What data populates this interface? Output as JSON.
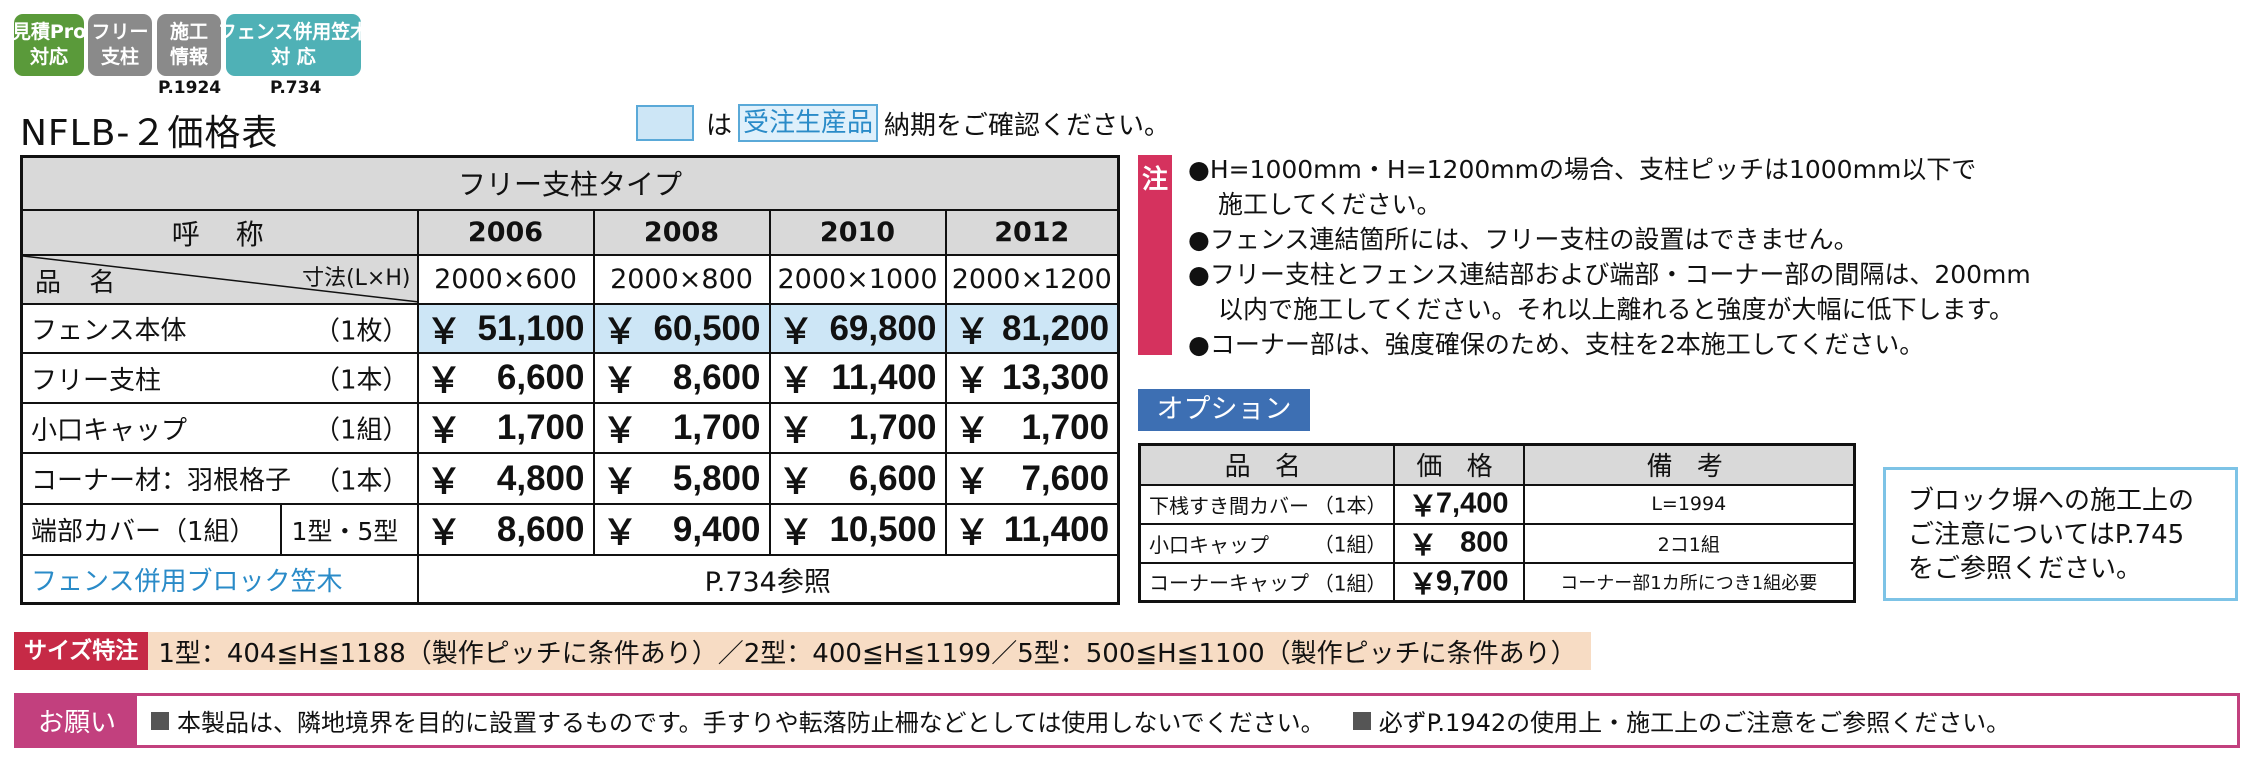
{
  "badges": [
    {
      "line1": "見積Pro",
      "line2": "対応",
      "color": "#5a9a3a"
    },
    {
      "line1": "フリー",
      "line2": "支柱",
      "color": "#8a8a8a"
    },
    {
      "line1": "施工",
      "line2": "情報",
      "color": "#8a8a8a",
      "ref": "P.1924"
    },
    {
      "line1": "フェンス併用笠木",
      "line2": "対 応",
      "color": "#4fb1b6",
      "ref": "P.734"
    }
  ],
  "title": "NFLB-２価格表",
  "legend": {
    "pre": "は",
    "tag": "受注生産品",
    "post": "納期をご確認ください。"
  },
  "main_table": {
    "type_header": "フリー支柱タイプ",
    "name_header": "呼　称",
    "diag_name": "品 名",
    "diag_dim": "寸法(L×H)",
    "columns": [
      {
        "code": "2006",
        "size": "2000×600"
      },
      {
        "code": "2008",
        "size": "2000×800"
      },
      {
        "code": "2010",
        "size": "2000×1000"
      },
      {
        "code": "2012",
        "size": "2000×1200"
      }
    ],
    "yen": "￥",
    "rows": [
      {
        "name": "フェンス本体",
        "unit": "（1枚）",
        "prices": [
          "51,100",
          "60,500",
          "69,800",
          "81,200"
        ]
      },
      {
        "name": "フリー支柱",
        "unit": "（1本）",
        "prices": [
          "6,600",
          "8,600",
          "11,400",
          "13,300"
        ]
      },
      {
        "name": "小口キャップ",
        "unit": "（1組）",
        "prices": [
          "1,700",
          "1,700",
          "1,700",
          "1,700"
        ]
      },
      {
        "name": "コーナー材：羽根格子",
        "unit": "（1本）",
        "prices": [
          "4,800",
          "5,800",
          "6,600",
          "7,600"
        ]
      },
      {
        "name": "端部カバー（1組）",
        "sub": "1型・5型",
        "prices": [
          "8,600",
          "9,400",
          "10,500",
          "11,400"
        ]
      }
    ],
    "block_row": {
      "name": "フェンス併用ブロック笠木",
      "ref": "P.734参照"
    }
  },
  "note_label": "注",
  "notes": [
    "●H=1000mm・H=1200mmの場合、支柱ピッチは1000mm以下で",
    "施工してください。",
    "●フェンス連結箇所には、フリー支柱の設置はできません。",
    "●フリー支柱とフェンス連結部および端部・コーナー部の間隔は、200mm",
    "以内で施工してください。それ以上離れると強度が大幅に低下します。",
    "●コーナー部は、強度確保のため、支柱を2本施工してください。"
  ],
  "options": {
    "title": "オプション",
    "headers": [
      "品 名",
      "価 格",
      "備 考"
    ],
    "yen": "￥",
    "rows": [
      {
        "name": "下桟すき間カバー",
        "unit": "（1本）",
        "price": "7,400",
        "remark": "L=1994"
      },
      {
        "name": "小口キャップ",
        "unit": "（1組）",
        "price": "800",
        "remark": "2コ1組"
      },
      {
        "name": "コーナーキャップ",
        "unit": "（1組）",
        "price": "9,700",
        "remark": "コーナー部1カ所につき1組必要"
      }
    ]
  },
  "block_note": [
    "ブロック塀への施工上の",
    "ご注意についてはP.745",
    "をご参照ください。"
  ],
  "size_special": {
    "label": "サイズ特注",
    "text": "1型：404≦H≦1188（製作ピッチに条件あり）／2型：400≦H≦1199／5型：500≦H≦1100（製作ピッチに条件あり）"
  },
  "request": {
    "label": "お願い",
    "items": [
      "本製品は、隣地境界を目的に設置するものです。手すりや転落防止柵などとしては使用しないでください。",
      "必ずP.1942の使用上・施工上のご注意をご参照ください。"
    ]
  }
}
